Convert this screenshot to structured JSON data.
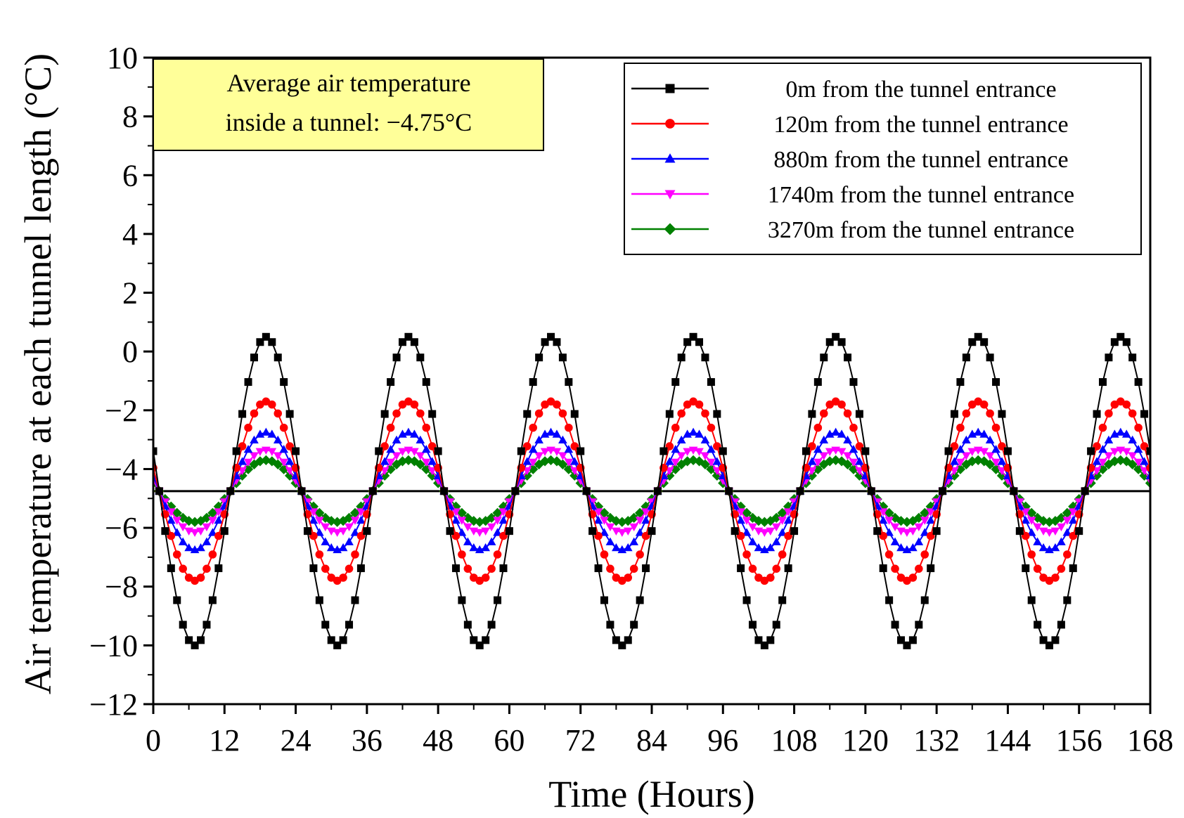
{
  "chart_data": {
    "type": "line",
    "title": "",
    "xlabel": "Time (Hours)",
    "ylabel": "Air temperature at each tunnel length (°C)",
    "xlim": [
      0,
      168
    ],
    "ylim": [
      -12,
      10
    ],
    "xticks": [
      "0",
      "12",
      "24",
      "36",
      "48",
      "60",
      "72",
      "84",
      "96",
      "108",
      "120",
      "132",
      "144",
      "156",
      "168"
    ],
    "yticks": [
      "10",
      "8",
      "6",
      "4",
      "2",
      "0",
      "−2",
      "−4",
      "−6",
      "−8",
      "−10",
      "−12"
    ],
    "grid": false,
    "legend_position": "top-right",
    "x_step_hours": 1,
    "period_hours": 24,
    "series": [
      {
        "name": "0m from the tunnel entrance",
        "color": "#000000",
        "marker": "square",
        "mean": -4.75,
        "amplitude": 5.25,
        "min_at_hour": 7
      },
      {
        "name": "120m from the tunnel entrance",
        "color": "#ff0000",
        "marker": "circle",
        "mean": -4.75,
        "amplitude": 3.05,
        "min_at_hour": 7
      },
      {
        "name": "880m from the tunnel entrance",
        "color": "#0000ff",
        "marker": "triangle-up",
        "mean": -4.75,
        "amplitude": 2.0,
        "min_at_hour": 7
      },
      {
        "name": "1740m from the tunnel entrance",
        "color": "#ff00ff",
        "marker": "triangle-down",
        "mean": -4.75,
        "amplitude": 1.4,
        "min_at_hour": 7
      },
      {
        "name": "3270m from the tunnel entrance",
        "color": "#008000",
        "marker": "diamond",
        "mean": -4.75,
        "amplitude": 1.05,
        "min_at_hour": 7
      }
    ],
    "reference_line": {
      "y": -4.75,
      "color": "#000000"
    },
    "annotation": {
      "lines": [
        "Average air temperature",
        "inside a tunnel: −4.75°C"
      ],
      "background": "#ffff99"
    }
  }
}
